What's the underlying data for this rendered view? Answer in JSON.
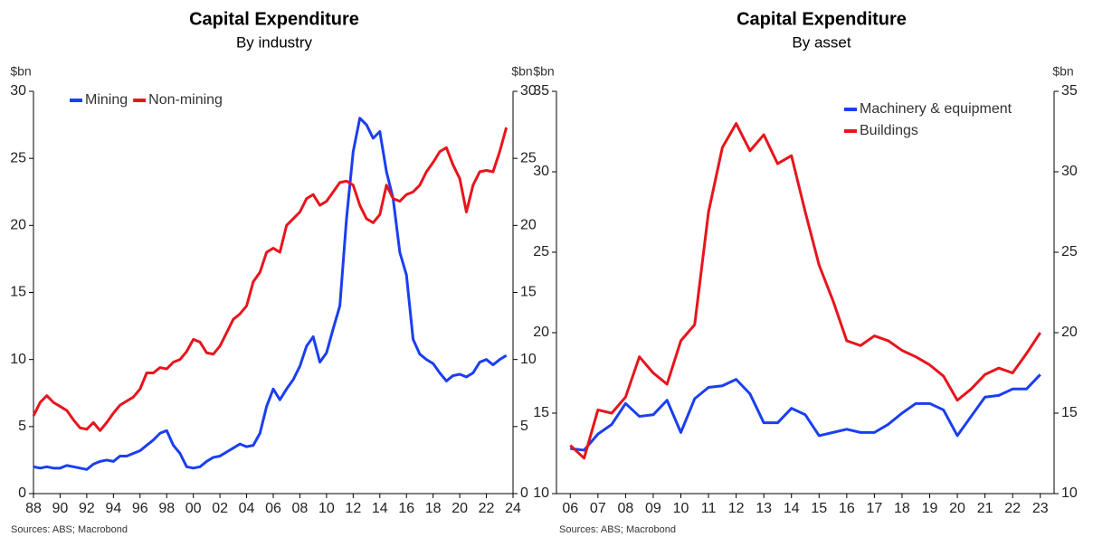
{
  "chart_data": [
    {
      "type": "line",
      "title": "Capital Expenditure",
      "subtitle": "By industry",
      "y_label": "$bn",
      "y2_label": "$bn",
      "source": "Sources: ABS; Macrobond",
      "legend": "upper left",
      "xlim": [
        1988,
        2024
      ],
      "xticks": [
        {
          "value": 1988,
          "label": "88"
        },
        {
          "value": 1990,
          "label": "90"
        },
        {
          "value": 1992,
          "label": "92"
        },
        {
          "value": 1994,
          "label": "94"
        },
        {
          "value": 1996,
          "label": "96"
        },
        {
          "value": 1998,
          "label": "98"
        },
        {
          "value": 2000,
          "label": "00"
        },
        {
          "value": 2002,
          "label": "02"
        },
        {
          "value": 2004,
          "label": "04"
        },
        {
          "value": 2006,
          "label": "06"
        },
        {
          "value": 2008,
          "label": "08"
        },
        {
          "value": 2010,
          "label": "10"
        },
        {
          "value": 2012,
          "label": "12"
        },
        {
          "value": 2014,
          "label": "14"
        },
        {
          "value": 2016,
          "label": "16"
        },
        {
          "value": 2018,
          "label": "18"
        },
        {
          "value": 2020,
          "label": "20"
        },
        {
          "value": 2022,
          "label": "22"
        },
        {
          "value": 2024,
          "label": "24"
        }
      ],
      "ylim": [
        0,
        30
      ],
      "yticks": [
        0,
        5,
        10,
        15,
        20,
        25,
        30
      ],
      "y2lim": [
        0,
        30
      ],
      "y2ticks": [
        0,
        5,
        10,
        15,
        20,
        25,
        30
      ],
      "x": [
        1988,
        1988.5,
        1989,
        1989.5,
        1990,
        1990.5,
        1991,
        1991.5,
        1992,
        1992.5,
        1993,
        1993.5,
        1994,
        1994.5,
        1995,
        1995.5,
        1996,
        1996.5,
        1997,
        1997.5,
        1998,
        1998.5,
        1999,
        1999.5,
        2000,
        2000.5,
        2001,
        2001.5,
        2002,
        2002.5,
        2003,
        2003.5,
        2004,
        2004.5,
        2005,
        2005.5,
        2006,
        2006.5,
        2007,
        2007.5,
        2008,
        2008.5,
        2009,
        2009.5,
        2010,
        2010.5,
        2011,
        2011.5,
        2012,
        2012.5,
        2013,
        2013.5,
        2014,
        2014.5,
        2015,
        2015.5,
        2016,
        2016.5,
        2017,
        2017.5,
        2018,
        2018.5,
        2019,
        2019.5,
        2020,
        2020.5,
        2021,
        2021.5,
        2022,
        2022.5,
        2023,
        2023.5
      ],
      "series": [
        {
          "name": "Mining",
          "color": "#1a3ff0",
          "values": [
            2.0,
            1.9,
            2.0,
            1.9,
            1.9,
            2.1,
            2.0,
            1.9,
            1.8,
            2.2,
            2.4,
            2.5,
            2.4,
            2.8,
            2.8,
            3.0,
            3.2,
            3.6,
            4.0,
            4.5,
            4.7,
            3.6,
            3.0,
            2.0,
            1.9,
            2.0,
            2.4,
            2.7,
            2.8,
            3.1,
            3.4,
            3.7,
            3.5,
            3.6,
            4.5,
            6.5,
            7.8,
            7.0,
            7.8,
            8.5,
            9.5,
            11.0,
            11.7,
            9.8,
            10.5,
            12.3,
            14.0,
            20.5,
            25.5,
            28.0,
            27.5,
            26.5,
            27.0,
            24.0,
            22.0,
            18.0,
            16.3,
            11.5,
            10.4,
            10.0,
            9.7,
            9.0,
            8.4,
            8.8,
            8.9,
            8.7,
            9.0,
            9.8,
            10.0,
            9.6,
            10.0,
            10.3
          ]
        },
        {
          "name": "Non-mining",
          "color": "#e8141c",
          "values": [
            5.8,
            6.8,
            7.3,
            6.8,
            6.5,
            6.2,
            5.5,
            4.9,
            4.8,
            5.3,
            4.7,
            5.3,
            6.0,
            6.6,
            6.9,
            7.2,
            7.8,
            9.0,
            9.0,
            9.4,
            9.3,
            9.8,
            10.0,
            10.6,
            11.5,
            11.3,
            10.5,
            10.4,
            11.0,
            12.0,
            13.0,
            13.4,
            14.0,
            15.8,
            16.5,
            18.0,
            18.3,
            18.0,
            20.0,
            20.5,
            21.0,
            22.0,
            22.3,
            21.5,
            21.8,
            22.5,
            23.2,
            23.3,
            23.0,
            21.5,
            20.5,
            20.2,
            20.8,
            23.0,
            22.0,
            21.8,
            22.3,
            22.5,
            23.0,
            24.0,
            24.7,
            25.5,
            25.8,
            24.5,
            23.5,
            21.0,
            23.0,
            24.0,
            24.1,
            24.0,
            25.5,
            27.3
          ]
        }
      ]
    },
    {
      "type": "line",
      "title": "Capital Expenditure",
      "subtitle": "By asset",
      "y_label": "$bn",
      "y2_label": "$bn",
      "source": "Sources: ABS; Macrobond",
      "legend": "upper right",
      "xlim": [
        2005.5,
        2023.5
      ],
      "xticks": [
        {
          "value": 2006,
          "label": "06"
        },
        {
          "value": 2007,
          "label": "07"
        },
        {
          "value": 2008,
          "label": "08"
        },
        {
          "value": 2009,
          "label": "09"
        },
        {
          "value": 2010,
          "label": "10"
        },
        {
          "value": 2011,
          "label": "11"
        },
        {
          "value": 2012,
          "label": "12"
        },
        {
          "value": 2013,
          "label": "13"
        },
        {
          "value": 2014,
          "label": "14"
        },
        {
          "value": 2015,
          "label": "15"
        },
        {
          "value": 2016,
          "label": "16"
        },
        {
          "value": 2017,
          "label": "17"
        },
        {
          "value": 2018,
          "label": "18"
        },
        {
          "value": 2019,
          "label": "19"
        },
        {
          "value": 2020,
          "label": "20"
        },
        {
          "value": 2021,
          "label": "21"
        },
        {
          "value": 2022,
          "label": "22"
        },
        {
          "value": 2023,
          "label": "23"
        }
      ],
      "ylim": [
        10,
        35
      ],
      "yticks": [
        10,
        15,
        20,
        25,
        30,
        35
      ],
      "y2lim": [
        10,
        35
      ],
      "y2ticks": [
        10,
        15,
        20,
        25,
        30,
        35
      ],
      "x": [
        2006,
        2006.5,
        2007,
        2007.5,
        2008,
        2008.5,
        2009,
        2009.5,
        2010,
        2010.5,
        2011,
        2011.5,
        2012,
        2012.5,
        2013,
        2013.5,
        2014,
        2014.5,
        2015,
        2015.5,
        2016,
        2016.5,
        2017,
        2017.5,
        2018,
        2018.5,
        2019,
        2019.5,
        2020,
        2020.5,
        2021,
        2021.5,
        2022,
        2022.5,
        2023
      ],
      "series": [
        {
          "name": "Machinery & equipment",
          "color": "#1a3ff0",
          "values": [
            12.8,
            12.7,
            13.7,
            14.3,
            15.6,
            14.8,
            14.9,
            15.8,
            13.8,
            15.9,
            16.6,
            16.7,
            17.1,
            16.2,
            14.4,
            14.4,
            15.3,
            14.9,
            13.6,
            13.8,
            14.0,
            13.8,
            13.8,
            14.3,
            15.0,
            15.6,
            15.6,
            15.2,
            13.6,
            14.8,
            16.0,
            16.1,
            16.5,
            16.5,
            17.4
          ]
        },
        {
          "name": "Buildings",
          "color": "#e8141c",
          "values": [
            13.0,
            12.2,
            15.2,
            15.0,
            16.0,
            18.5,
            17.5,
            16.8,
            19.5,
            20.5,
            27.5,
            31.5,
            33.0,
            31.3,
            32.3,
            30.5,
            31.0,
            27.5,
            24.2,
            22.0,
            19.5,
            19.2,
            19.8,
            19.5,
            18.9,
            18.5,
            18.0,
            17.3,
            15.8,
            16.5,
            17.4,
            17.8,
            17.5,
            18.7,
            20.0
          ]
        }
      ]
    }
  ]
}
